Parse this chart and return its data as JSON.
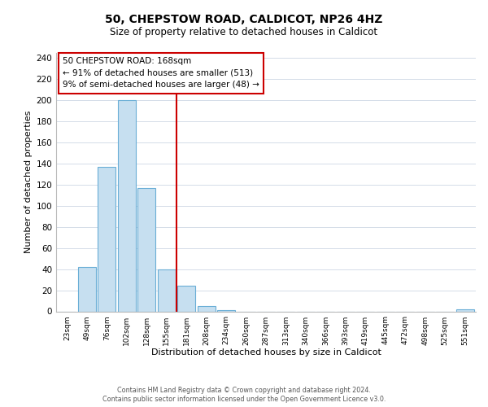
{
  "title_line1": "50, CHEPSTOW ROAD, CALDICOT, NP26 4HZ",
  "title_line2": "Size of property relative to detached houses in Caldicot",
  "xlabel": "Distribution of detached houses by size in Caldicot",
  "ylabel": "Number of detached properties",
  "bar_labels": [
    "23sqm",
    "49sqm",
    "76sqm",
    "102sqm",
    "128sqm",
    "155sqm",
    "181sqm",
    "208sqm",
    "234sqm",
    "260sqm",
    "287sqm",
    "313sqm",
    "340sqm",
    "366sqm",
    "393sqm",
    "419sqm",
    "445sqm",
    "472sqm",
    "498sqm",
    "525sqm",
    "551sqm"
  ],
  "bar_values": [
    0,
    42,
    137,
    200,
    117,
    40,
    24,
    5,
    1,
    0,
    0,
    0,
    0,
    0,
    0,
    0,
    0,
    0,
    0,
    0,
    2
  ],
  "bar_color": "#c6dff0",
  "bar_edge_color": "#6aaed6",
  "annotation_box_text": "50 CHEPSTOW ROAD: 168sqm\n← 91% of detached houses are smaller (513)\n9% of semi-detached houses are larger (48) →",
  "vline_color": "#cc0000",
  "ylim": [
    0,
    245
  ],
  "yticks": [
    0,
    20,
    40,
    60,
    80,
    100,
    120,
    140,
    160,
    180,
    200,
    220,
    240
  ],
  "footer_line1": "Contains HM Land Registry data © Crown copyright and database right 2024.",
  "footer_line2": "Contains public sector information licensed under the Open Government Licence v3.0.",
  "background_color": "#ffffff",
  "grid_color": "#d4dce8"
}
